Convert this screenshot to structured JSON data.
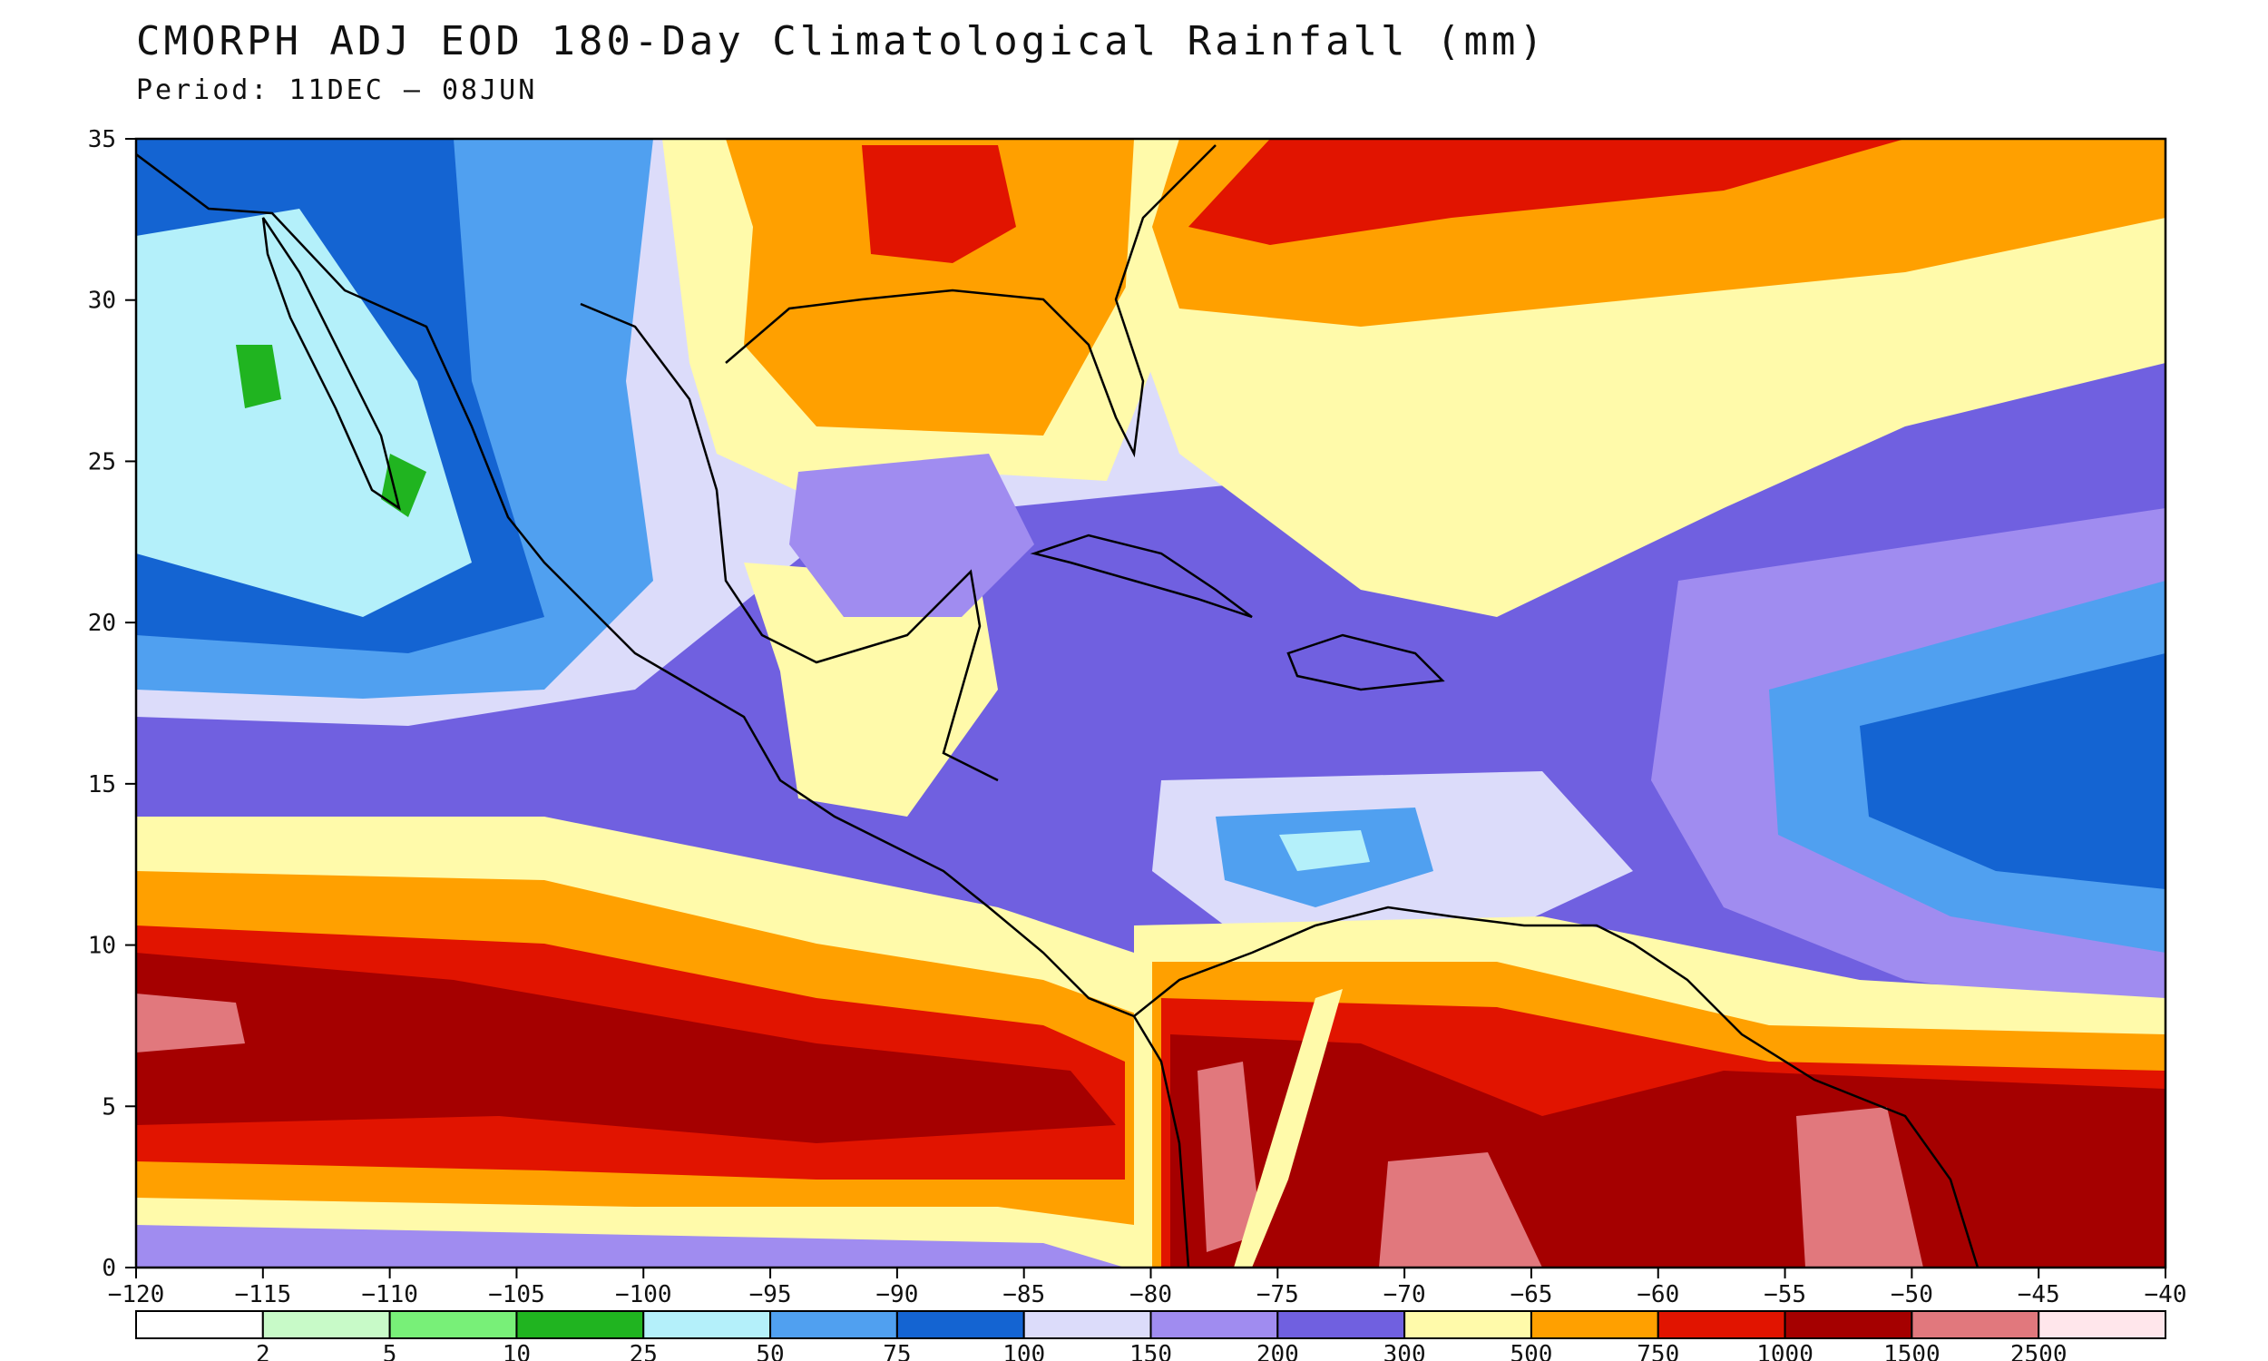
{
  "title": "CMORPH ADJ EOD 180-Day Climatological Rainfall (mm)",
  "subtitle": "Period: 11DEC — 08JUN",
  "map": {
    "lon_range": [
      -120,
      -40
    ],
    "lat_range": [
      0,
      35
    ],
    "lon_ticks": [
      "−120",
      "−115",
      "−110",
      "−105",
      "−100",
      "−95",
      "−90",
      "−85",
      "−80",
      "−75",
      "−70",
      "−65",
      "−60",
      "−55",
      "−50",
      "−45",
      "−40"
    ],
    "lat_ticks": [
      "0",
      "5",
      "10",
      "15",
      "20",
      "25",
      "30",
      "35"
    ]
  },
  "legend": {
    "thresholds": [
      "2",
      "5",
      "10",
      "25",
      "50",
      "75",
      "100",
      "150",
      "200",
      "300",
      "500",
      "750",
      "1000",
      "1500",
      "2500"
    ],
    "colors": [
      "#ffffff",
      "#c8fac8",
      "#78f078",
      "#20b420",
      "#b4f0fa",
      "#50a0f0",
      "#1464d2",
      "#dcdcfa",
      "#a08cf0",
      "#7060e0",
      "#fffaaa",
      "#ffa000",
      "#e11400",
      "#a50000",
      "#e1787d",
      "#ffe6eb"
    ]
  }
}
